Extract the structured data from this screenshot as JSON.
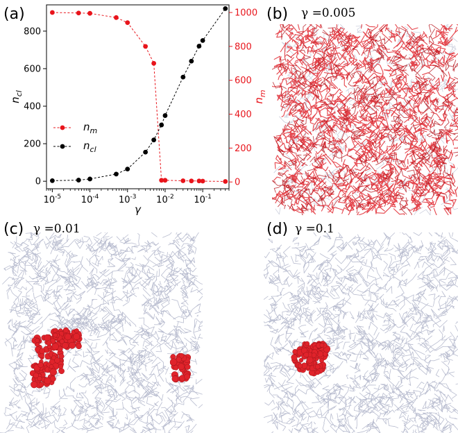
{
  "panels": {
    "a": {
      "label": "(a)"
    },
    "b": {
      "label": "(b)",
      "gamma_text": "γ =0.005"
    },
    "c": {
      "label": "(c)",
      "gamma_text": "γ =0.01"
    },
    "d": {
      "label": "(d)",
      "gamma_text": "γ =0.1"
    }
  },
  "colors": {
    "n_m": "#e8141b",
    "n_cl": "#000000",
    "network": "#9aa0bb",
    "cluster": "#e0232b",
    "axis": "#000000"
  },
  "chart_data": {
    "type": "line",
    "title": "",
    "xlabel": "γ",
    "ylabel_left": "n_cl",
    "ylabel_right": "n_m",
    "x_scale": "log",
    "xlim": [
      7e-06,
      0.5
    ],
    "ylim_left": [
      -40,
      940
    ],
    "ylim_right": [
      -40,
      1045
    ],
    "x_ticks": [
      {
        "value": 1e-05,
        "label": "10^-5"
      },
      {
        "value": 0.0001,
        "label": "10^-4"
      },
      {
        "value": 0.001,
        "label": "10^-3"
      },
      {
        "value": 0.01,
        "label": "10^-2"
      },
      {
        "value": 0.1,
        "label": "10^-1"
      }
    ],
    "left_ticks": [
      0,
      200,
      400,
      600,
      800
    ],
    "right_ticks": [
      0,
      200,
      400,
      600,
      800,
      1000
    ],
    "legend_position": "center-left",
    "grid": false,
    "series": [
      {
        "name": "n_m",
        "axis": "right",
        "color": "#e8141b",
        "x": [
          1e-05,
          5e-05,
          0.0001,
          0.0005,
          0.001,
          0.003,
          0.005,
          0.008,
          0.01,
          0.03,
          0.05,
          0.08,
          0.1,
          0.4
        ],
        "y": [
          1000,
          997,
          995,
          970,
          940,
          800,
          700,
          10,
          10,
          7,
          6,
          6,
          5,
          3
        ]
      },
      {
        "name": "n_cl",
        "axis": "left",
        "color": "#000000",
        "x": [
          1e-05,
          5e-05,
          0.0001,
          0.0005,
          0.001,
          0.003,
          0.005,
          0.008,
          0.01,
          0.03,
          0.05,
          0.08,
          0.1,
          0.4
        ],
        "y": [
          3,
          6,
          12,
          38,
          65,
          155,
          220,
          300,
          350,
          555,
          640,
          720,
          750,
          920
        ]
      }
    ]
  }
}
